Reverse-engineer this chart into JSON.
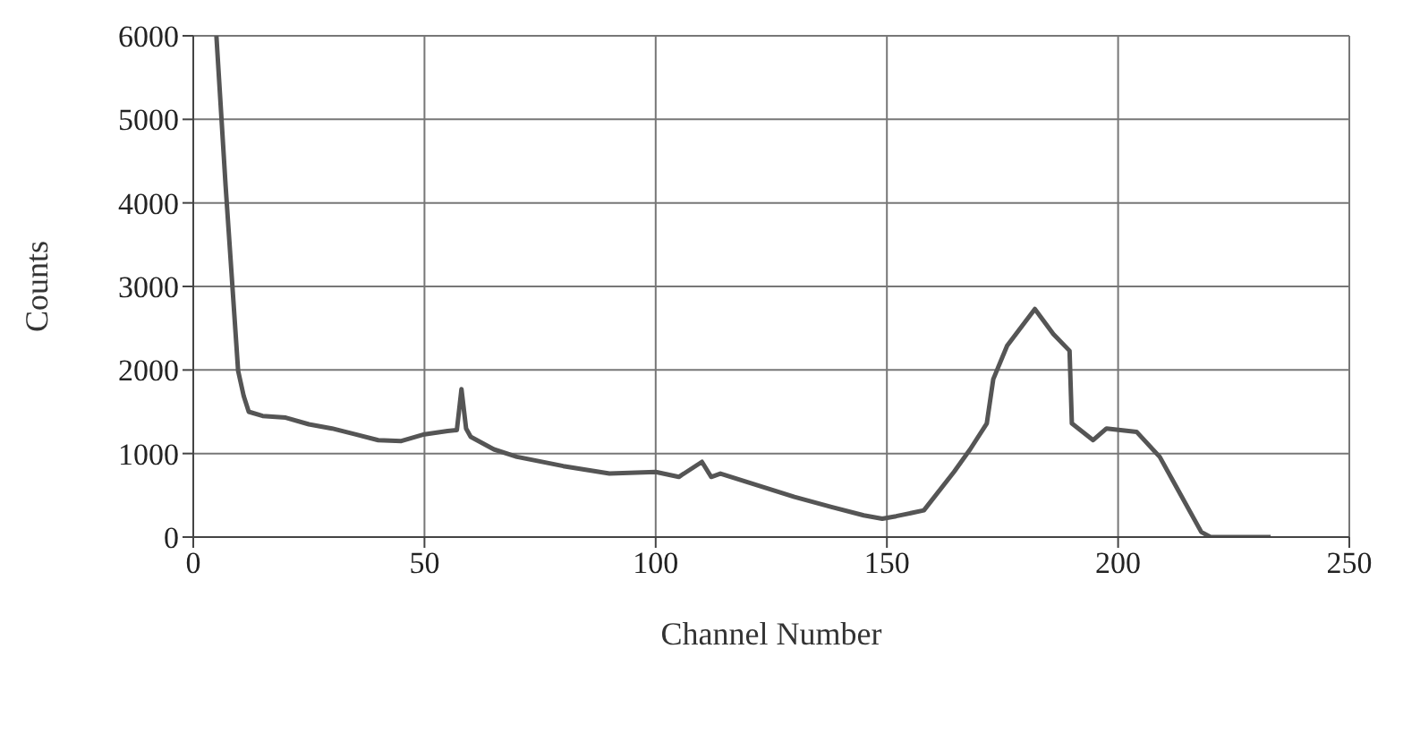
{
  "chart_data": {
    "type": "line",
    "xlabel": "Channel Number",
    "ylabel": "Counts",
    "xlim": [
      0,
      250
    ],
    "xticks": [
      0,
      50,
      100,
      150,
      200,
      250
    ],
    "ylim": [
      0,
      6000
    ],
    "yticks": [
      0,
      1000,
      2000,
      3000,
      4000,
      5000,
      6000
    ],
    "grid": true,
    "line_style": "solid",
    "marker": "none",
    "series": [
      {
        "color": "#555555",
        "x": [
          5,
          7,
          9.7,
          10.9,
          12,
          15,
          20,
          25,
          30,
          35,
          40,
          45,
          50,
          55,
          57,
          58,
          59,
          60,
          65,
          70,
          80,
          90,
          100,
          105,
          110,
          112,
          114,
          122,
          130,
          138,
          145,
          149,
          152,
          158,
          164.5,
          168,
          171.6,
          173,
          176,
          182,
          186,
          189.5,
          190,
          194.6,
          197.5,
          204,
          209,
          213,
          218,
          220,
          233
        ],
        "values": [
          6000,
          4200,
          1990,
          1690,
          1500,
          1450,
          1430,
          1350,
          1300,
          1230,
          1160,
          1150,
          1230,
          1270,
          1280,
          1770,
          1300,
          1200,
          1050,
          960,
          850,
          760,
          780,
          720,
          900,
          720,
          760,
          620,
          480,
          360,
          260,
          220,
          250,
          320,
          780,
          1050,
          1360,
          1890,
          2290,
          2730,
          2430,
          2230,
          1360,
          1160,
          1300,
          1260,
          960,
          560,
          60,
          0,
          0
        ]
      }
    ]
  }
}
